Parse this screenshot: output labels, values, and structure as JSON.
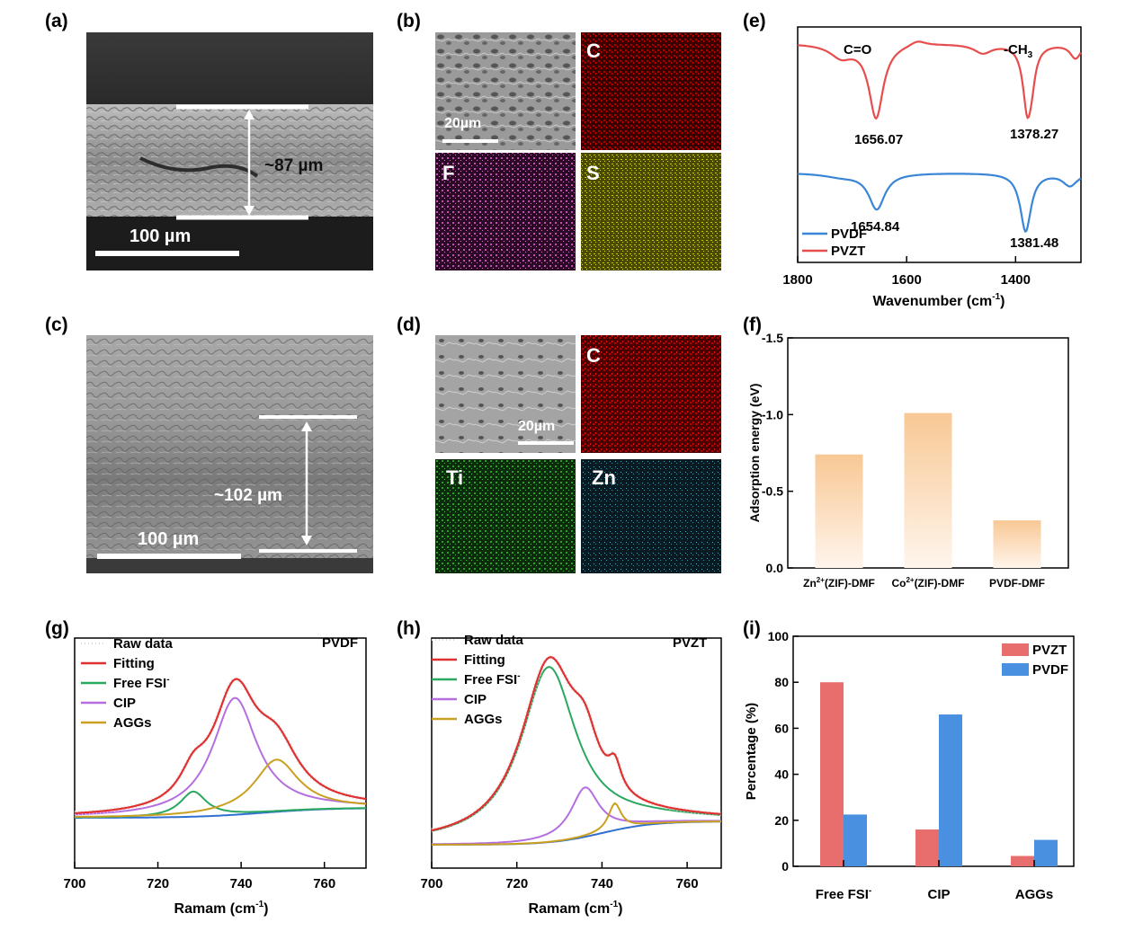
{
  "panel_labels": {
    "a": "(a)",
    "b": "(b)",
    "c": "(c)",
    "d": "(d)",
    "e": "(e)",
    "f": "(f)",
    "g": "(g)",
    "h": "(h)",
    "i": "(i)"
  },
  "panel_a": {
    "thickness": "~87 µm",
    "scale_bar": "100 µm"
  },
  "panel_b": {
    "scale_bar": "20µm",
    "maps": [
      "C",
      "F",
      "S"
    ]
  },
  "panel_c": {
    "thickness": "~102 µm",
    "scale_bar": "100 µm"
  },
  "panel_d": {
    "scale_bar": "20µm",
    "maps": [
      "C",
      "Ti",
      "Zn"
    ]
  },
  "colors": {
    "pvzt": "#e84d4d",
    "pvdf": "#3a86d6",
    "fitting": "#e03030",
    "free": "#2aa860",
    "cip": "#b46ee0",
    "aggs": "#caa020",
    "baseline": "#2f6fd0",
    "bar_red": "#e86e6e",
    "bar_blue": "#4a90e0",
    "bar_orange": "#f8c89a"
  },
  "chart_data": [
    {
      "panel": "e",
      "type": "line",
      "xlabel": "Wavenumber (cm",
      "xlabel_sup": "-1",
      "xlabel_end": ")",
      "xticks": [
        1800,
        1600,
        1400
      ],
      "xlim": [
        1800,
        1280
      ],
      "series": [
        {
          "name": "PVDF"
        },
        {
          "name": "PVZT"
        }
      ],
      "annotations": {
        "co": "C=O",
        "ch3": "-CH",
        "ch3_sub": "3",
        "pvzt_peak1": "1656.07",
        "pvzt_peak2": "1378.27",
        "pvdf_peak1": "1654.84",
        "pvdf_peak2": "1381.48"
      },
      "peaks": {
        "PVZT": [
          1656.07,
          1378.27
        ],
        "PVDF": [
          1654.84,
          1381.48
        ]
      }
    },
    {
      "panel": "f",
      "type": "bar",
      "ylabel": "Adsorption energy (eV)",
      "categories": [
        {
          "pre": "Zn",
          "sup": "2+",
          "post": "(ZIF)-DMF"
        },
        {
          "pre": "Co",
          "sup": "2+",
          "post": "(ZIF)-DMF"
        },
        {
          "pre": "PVDF-DMF",
          "sup": "",
          "post": ""
        }
      ],
      "values": [
        -0.74,
        -1.01,
        -0.31
      ],
      "ylim": [
        0,
        -1.5
      ],
      "yticks": [
        {
          "v": 0,
          "label": "0.0"
        },
        {
          "v": -0.5,
          "label": "-0.5"
        },
        {
          "v": -1.0,
          "label": "-1.0"
        },
        {
          "v": -1.5,
          "label": "-1.5"
        }
      ]
    },
    {
      "panel": "g",
      "type": "line",
      "title": "PVDF",
      "xlabel": "Ramam (cm",
      "xlabel_sup": "-1",
      "xlabel_end": ")",
      "xticks": [
        700,
        720,
        740,
        760
      ],
      "xlim": [
        700,
        770
      ],
      "legend": [
        {
          "name": "Raw data"
        },
        {
          "name": "Fitting"
        },
        {
          "name": "Free FSI",
          "sup": "-"
        },
        {
          "name": "CIP"
        },
        {
          "name": "AGGs"
        }
      ],
      "peak_centers": {
        "Free FSI-": 728.5,
        "CIP": 738.5,
        "AGGs": 748.5
      }
    },
    {
      "panel": "h",
      "type": "line",
      "title": "PVZT",
      "xlabel": "Ramam (cm",
      "xlabel_sup": "-1",
      "xlabel_end": ")",
      "xticks": [
        700,
        720,
        740,
        760
      ],
      "xlim": [
        700,
        768
      ],
      "legend": [
        {
          "name": "Raw data"
        },
        {
          "name": "Fitting"
        },
        {
          "name": "Free FSI",
          "sup": "-"
        },
        {
          "name": "CIP"
        },
        {
          "name": "AGGs"
        }
      ],
      "peak_centers": {
        "Free FSI-": 727.5,
        "CIP": 736,
        "AGGs": 743
      }
    },
    {
      "panel": "i",
      "type": "bar",
      "ylabel": "Percentage (%)",
      "categories": [
        {
          "name": "Free FSI",
          "sup": "-"
        },
        {
          "name": "CIP",
          "sup": ""
        },
        {
          "name": "AGGs",
          "sup": ""
        }
      ],
      "series": [
        {
          "name": "PVZT",
          "values": [
            80,
            16,
            4.5
          ]
        },
        {
          "name": "PVDF",
          "values": [
            22.5,
            66,
            11.5
          ]
        }
      ],
      "ylim": [
        0,
        100
      ],
      "yticks": [
        0,
        20,
        40,
        60,
        80,
        100
      ]
    }
  ]
}
